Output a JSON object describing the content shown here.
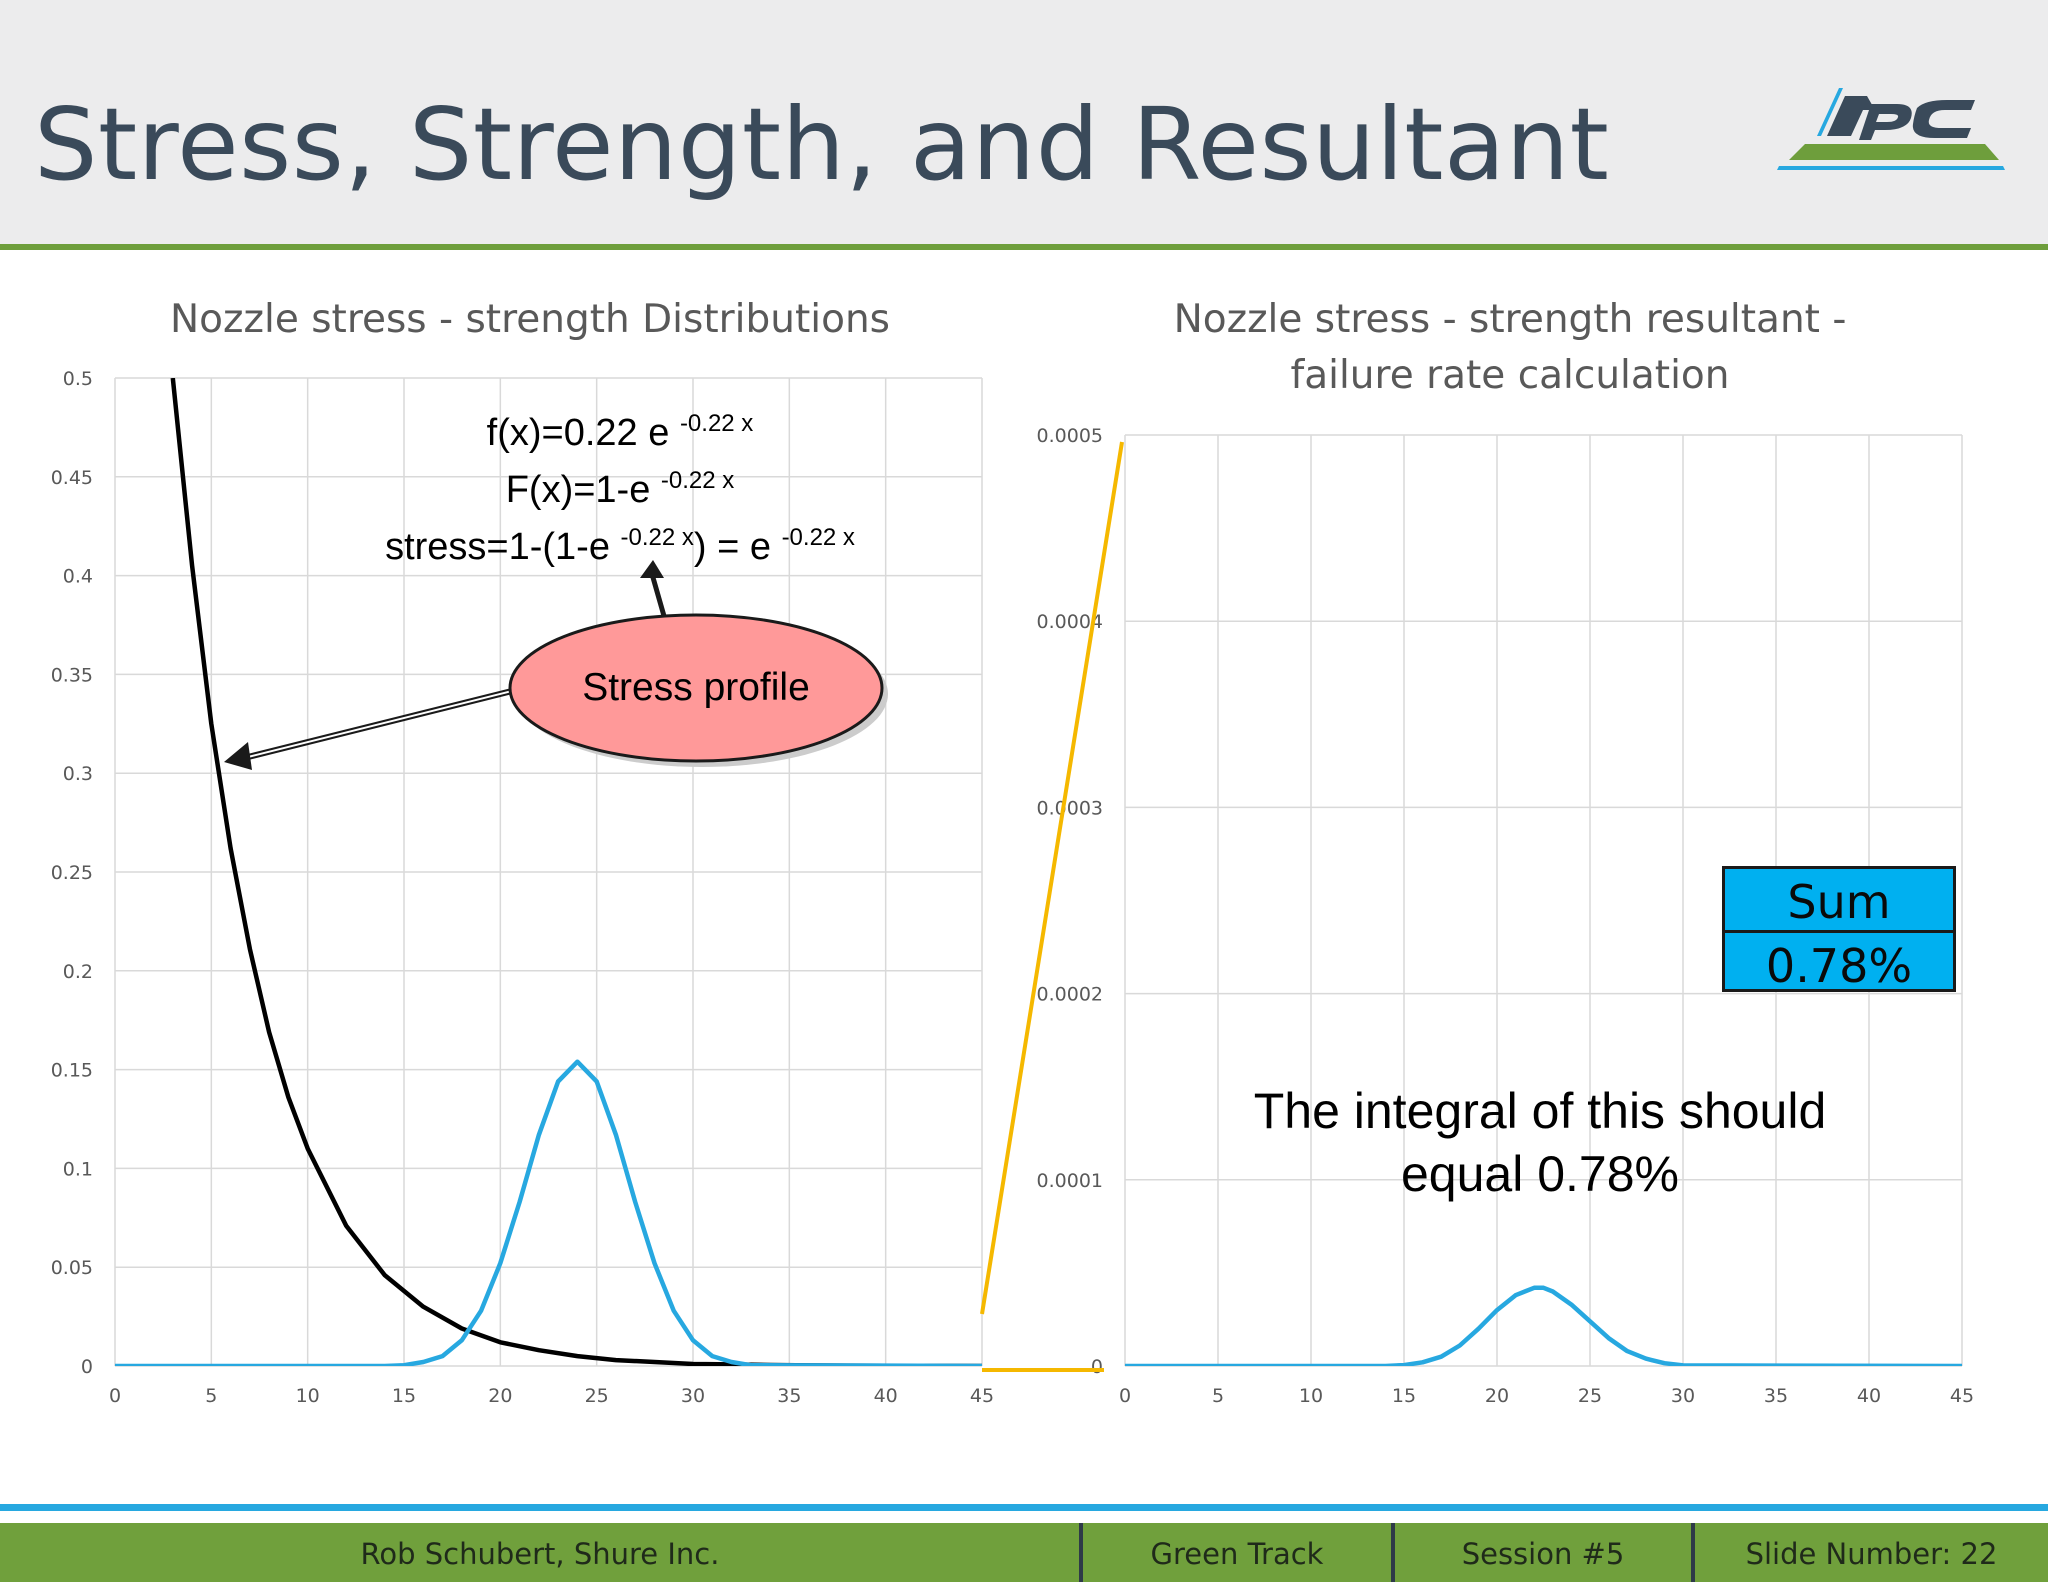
{
  "slide": {
    "title": "Stress, Strength, and Resultant"
  },
  "colors": {
    "green": "#70a03c",
    "blue": "#27a8e0",
    "title": "#3a4a5a",
    "callout": "#ff9999",
    "sum": "#00b0f0",
    "connector": "#f5b800"
  },
  "annotations": {
    "formula1_main": "f(x)=0.22 e ",
    "formula1_sup": "-0.22 x",
    "formula2_main": "F(x)=1-e ",
    "formula2_sup": "-0.22 x",
    "formula3_a": "stress=1-(1-e ",
    "formula3_sup1": "-0.22 x",
    "formula3_b": ") = e ",
    "formula3_sup2": "-0.22 x",
    "callout": "Stress profile",
    "integral_line1": "The integral of this should",
    "integral_line2": "equal 0.78%",
    "sum_label": "Sum",
    "sum_value": "0.78%"
  },
  "footer": {
    "author": "Rob Schubert, Shure Inc.",
    "track": "Green Track",
    "session": "Session #5",
    "slide_number": "Slide Number: 22"
  },
  "chart_data": [
    {
      "type": "line",
      "title": "Nozzle stress - strength Distributions",
      "xlim": [
        0,
        45
      ],
      "ylim": [
        0,
        0.5
      ],
      "xticks": [
        0,
        5,
        10,
        15,
        20,
        25,
        30,
        35,
        40,
        45
      ],
      "yticks": [
        0,
        0.05,
        0.1,
        0.15,
        0.2,
        0.25,
        0.3,
        0.35,
        0.4,
        0.45,
        0.5
      ],
      "grid": true,
      "series": [
        {
          "color": "#000000",
          "x": [
            3,
            4,
            5,
            6,
            7,
            8,
            9,
            10,
            12,
            14,
            16,
            18,
            20,
            22,
            24,
            26,
            28,
            30,
            32,
            34,
            36,
            38,
            40,
            42,
            45
          ],
          "y": [
            0.5,
            0.405,
            0.325,
            0.262,
            0.211,
            0.169,
            0.136,
            0.11,
            0.071,
            0.046,
            0.03,
            0.019,
            0.012,
            0.008,
            0.005,
            0.003,
            0.002,
            0.001,
            0.0008,
            0.0005,
            0.0003,
            0.0002,
            0.0001,
            0.0001,
            0
          ]
        },
        {
          "color": "#27a8e0",
          "x": [
            0,
            14,
            15,
            16,
            17,
            18,
            19,
            20,
            21,
            22,
            23,
            24,
            25,
            26,
            27,
            28,
            29,
            30,
            31,
            32,
            33,
            45
          ],
          "y": [
            0,
            0,
            0.0004,
            0.002,
            0.005,
            0.013,
            0.028,
            0.052,
            0.083,
            0.117,
            0.144,
            0.154,
            0.144,
            0.117,
            0.083,
            0.052,
            0.028,
            0.013,
            0.005,
            0.002,
            0.0004,
            0
          ]
        }
      ]
    },
    {
      "type": "line",
      "title": "Nozzle stress - strength resultant - failure rate calculation",
      "xlim": [
        0,
        45
      ],
      "ylim": [
        0,
        0.0005
      ],
      "xticks": [
        0,
        5,
        10,
        15,
        20,
        25,
        30,
        35,
        40,
        45
      ],
      "yticks": [
        0,
        0.0001,
        0.0002,
        0.0003,
        0.0004,
        0.0005
      ],
      "grid": true,
      "series": [
        {
          "color": "#27a8e0",
          "x": [
            0,
            14,
            15,
            16,
            17,
            18,
            19,
            20,
            21,
            22,
            22.5,
            23,
            24,
            25,
            26,
            27,
            28,
            29,
            30,
            45
          ],
          "y": [
            0,
            0,
            5e-07,
            2e-06,
            5e-06,
            1.1e-05,
            2e-05,
            3e-05,
            3.8e-05,
            4.2e-05,
            4.2e-05,
            4e-05,
            3.3e-05,
            2.4e-05,
            1.5e-05,
            8e-06,
            4e-06,
            1.5e-06,
            3e-07,
            0
          ]
        }
      ]
    }
  ]
}
